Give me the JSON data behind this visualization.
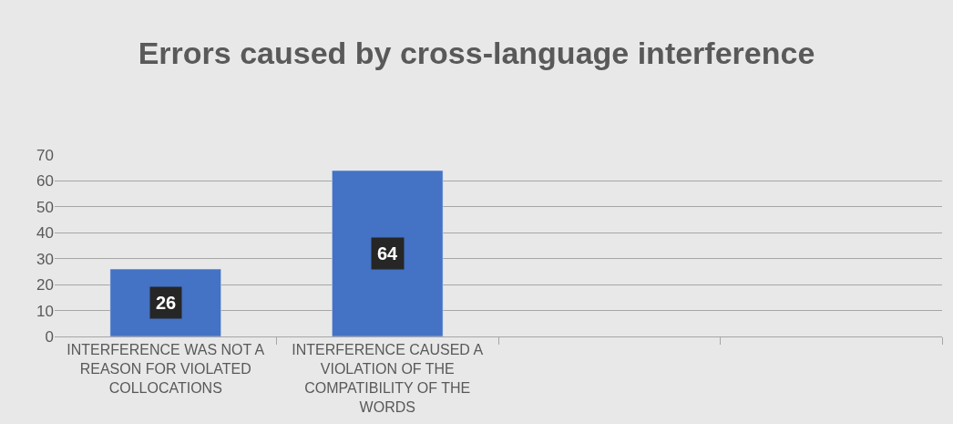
{
  "chart_data": {
    "type": "bar",
    "title": "Errors caused by cross-language interference",
    "categories": [
      "INTERFERENCE WAS NOT A REASON FOR VIOLATED COLLOCATIONS",
      "INTERFERENCE CAUSED A VIOLATION OF THE COMPATIBILITY OF THE WORDS",
      null,
      null
    ],
    "values": [
      26,
      64,
      null,
      null
    ],
    "color": "#4472c4",
    "ylim": [
      0,
      70
    ],
    "yticks": [
      0,
      10,
      20,
      30,
      40,
      50,
      60,
      70
    ],
    "grid": "y",
    "data_labels": true,
    "legend": false
  }
}
